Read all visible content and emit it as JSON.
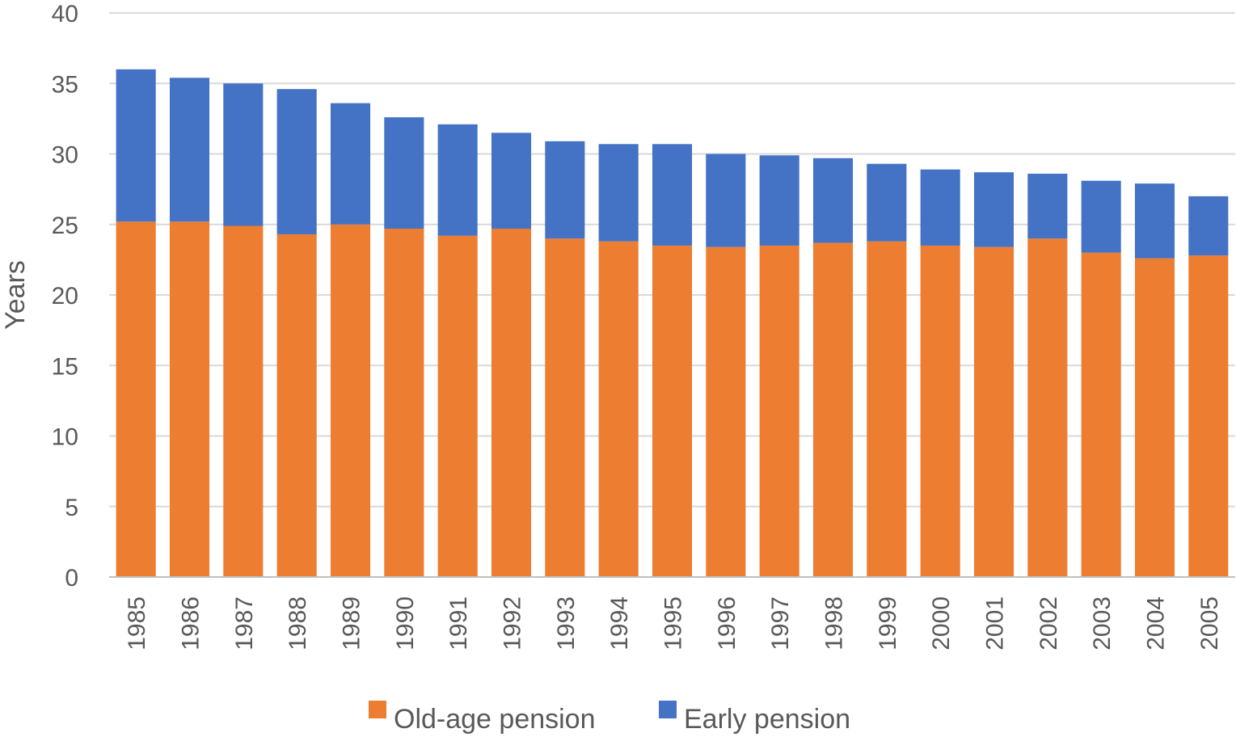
{
  "chart_data": {
    "type": "bar",
    "stacked": true,
    "title": "",
    "xlabel": "",
    "ylabel": "Years",
    "ylim": [
      0,
      40
    ],
    "yticks": [
      0,
      5,
      10,
      15,
      20,
      25,
      30,
      35,
      40
    ],
    "grid": true,
    "legend_position": "bottom",
    "categories": [
      "1985",
      "1986",
      "1987",
      "1988",
      "1989",
      "1990",
      "1991",
      "1992",
      "1993",
      "1994",
      "1995",
      "1996",
      "1997",
      "1998",
      "1999",
      "2000",
      "2001",
      "2002",
      "2003",
      "2004",
      "2005"
    ],
    "series": [
      {
        "name": "Old-age pension",
        "color": "#ed7d31",
        "values": [
          25.2,
          25.2,
          24.9,
          24.3,
          25.0,
          24.7,
          24.2,
          24.7,
          24.0,
          23.8,
          23.5,
          23.4,
          23.5,
          23.7,
          23.8,
          23.5,
          23.4,
          24.0,
          23.0,
          22.6,
          22.8
        ]
      },
      {
        "name": "Early pension",
        "color": "#4472c4",
        "values": [
          10.8,
          10.2,
          10.1,
          10.3,
          8.6,
          7.9,
          7.9,
          6.8,
          6.9,
          6.9,
          7.2,
          6.6,
          6.4,
          6.0,
          5.5,
          5.4,
          5.3,
          4.6,
          5.1,
          5.3,
          4.2
        ]
      }
    ]
  }
}
